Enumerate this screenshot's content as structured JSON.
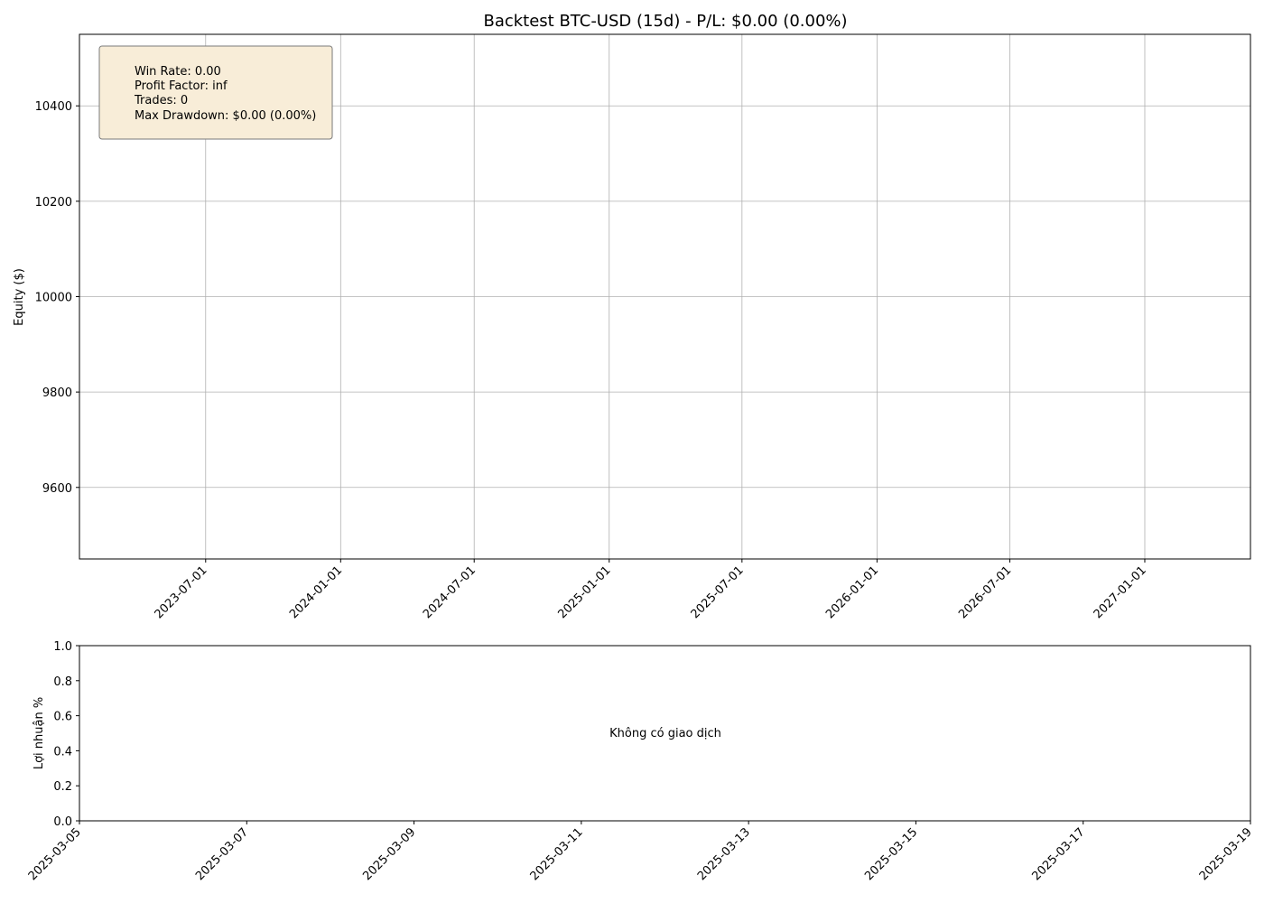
{
  "chart_data": [
    {
      "type": "line",
      "title": "Backtest BTC-USD (15d) - P/L: $0.00 (0.00%)",
      "xlabel": "",
      "ylabel": "Equity ($)",
      "x_ticks": [
        "2023-07-01",
        "2024-01-01",
        "2024-07-01",
        "2025-01-01",
        "2025-07-01",
        "2026-01-01",
        "2026-07-01",
        "2027-01-01"
      ],
      "xlim": [
        "2023-01-10",
        "2027-05-25"
      ],
      "y_ticks": [
        9600,
        9800,
        10000,
        10200,
        10400
      ],
      "ylim": [
        9450,
        10550
      ],
      "grid": true,
      "series": [],
      "stats_box": {
        "position": "top-left",
        "lines": [
          "Win Rate: 0.00",
          "Profit Factor: inf",
          "Trades: 0",
          "Max Drawdown: $0.00 (0.00%)"
        ]
      }
    },
    {
      "type": "bar",
      "title": "",
      "xlabel": "",
      "ylabel": "Lợi nhuận %",
      "x_ticks": [
        "2025-03-05",
        "2025-03-07",
        "2025-03-09",
        "2025-03-11",
        "2025-03-13",
        "2025-03-15",
        "2025-03-17",
        "2025-03-19"
      ],
      "xlim": [
        "2025-03-05",
        "2025-03-19"
      ],
      "y_ticks": [
        "0.0",
        "0.2",
        "0.4",
        "0.6",
        "0.8",
        "1.0"
      ],
      "ylim": [
        0,
        1
      ],
      "grid": false,
      "series": [],
      "message": "Không có giao dịch"
    }
  ],
  "colors": {
    "grid": "#b0b0b0",
    "stats_box_fill": "#f8edd8",
    "stats_box_edge": "#7a7a7a"
  }
}
